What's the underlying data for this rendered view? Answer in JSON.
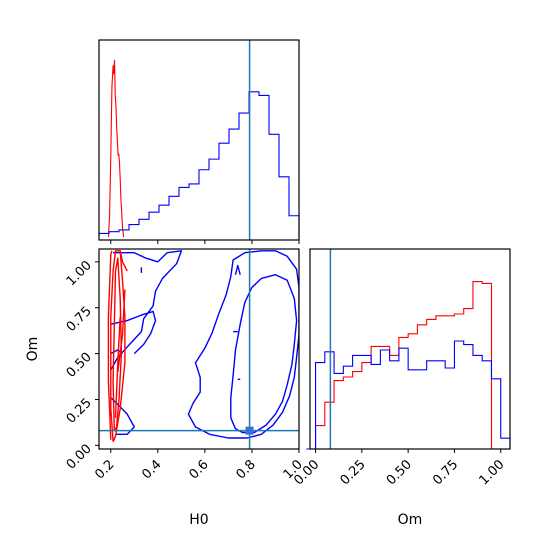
{
  "chart_data": [
    {
      "type": "histogram",
      "panel": "H0 marginal",
      "x_range": [
        0.15,
        1.0
      ],
      "truth_line": 0.79,
      "series": [
        {
          "color": "#ff0000",
          "step": false,
          "x": [
            0.19,
            0.195,
            0.2,
            0.205,
            0.21,
            0.213,
            0.216,
            0.219,
            0.222,
            0.225,
            0.228,
            0.231,
            0.234,
            0.237,
            0.24,
            0.243,
            0.246,
            0.25,
            0.255
          ],
          "values": [
            0.0,
            0.12,
            0.45,
            0.85,
            0.97,
            0.92,
            1.0,
            0.8,
            0.74,
            0.62,
            0.55,
            0.46,
            0.47,
            0.42,
            0.33,
            0.22,
            0.15,
            0.05,
            0.0
          ]
        },
        {
          "color": "#0000ff",
          "step": true,
          "bin_edges": [
            0.15,
            0.1925,
            0.235,
            0.2775,
            0.32,
            0.3625,
            0.405,
            0.4475,
            0.49,
            0.5325,
            0.575,
            0.6175,
            0.66,
            0.7025,
            0.745,
            0.7875,
            0.83,
            0.8725,
            0.915,
            0.9575,
            1.0
          ],
          "values": [
            0.02,
            0.03,
            0.04,
            0.07,
            0.1,
            0.14,
            0.18,
            0.23,
            0.28,
            0.3,
            0.38,
            0.44,
            0.53,
            0.61,
            0.7,
            0.82,
            0.8,
            0.58,
            0.34,
            0.12
          ]
        }
      ],
      "ylim": [
        0,
        1.0
      ]
    },
    {
      "type": "contour",
      "panel": "H0 vs Om joint",
      "xlabel": "H0",
      "ylabel": "Om",
      "xlim": [
        0.15,
        1.0
      ],
      "ylim": [
        -0.02,
        1.07
      ],
      "x_ticks": [
        "0.2",
        "0.4",
        "0.6",
        "0.8",
        "1.0"
      ],
      "x_tick_values": [
        0.2,
        0.4,
        0.6,
        0.8,
        1.0
      ],
      "y_ticks": [
        "0.00",
        "0.25",
        "0.50",
        "0.75",
        "1.00"
      ],
      "y_tick_values": [
        0.0,
        0.25,
        0.5,
        0.75,
        1.0
      ],
      "truth_point": [
        0.79,
        0.08
      ],
      "series": [
        {
          "color": "#0000ff",
          "contours": [
            [
              [
                0.73,
                0.09
              ],
              [
                0.71,
                0.15
              ],
              [
                0.71,
                0.26
              ],
              [
                0.72,
                0.38
              ],
              [
                0.73,
                0.52
              ],
              [
                0.75,
                0.66
              ],
              [
                0.77,
                0.78
              ],
              [
                0.8,
                0.86
              ],
              [
                0.84,
                0.91
              ],
              [
                0.9,
                0.93
              ],
              [
                0.95,
                0.9
              ],
              [
                0.98,
                0.8
              ],
              [
                0.99,
                0.68
              ],
              [
                0.98,
                0.55
              ],
              [
                0.97,
                0.44
              ],
              [
                0.95,
                0.33
              ],
              [
                0.93,
                0.24
              ],
              [
                0.9,
                0.17
              ],
              [
                0.86,
                0.11
              ],
              [
                0.81,
                0.07
              ],
              [
                0.76,
                0.07
              ],
              [
                0.73,
                0.09
              ]
            ],
            [
              [
                0.62,
                0.06
              ],
              [
                0.56,
                0.1
              ],
              [
                0.53,
                0.17
              ],
              [
                0.55,
                0.23
              ],
              [
                0.58,
                0.29
              ],
              [
                0.58,
                0.37
              ],
              [
                0.56,
                0.45
              ],
              [
                0.6,
                0.53
              ],
              [
                0.63,
                0.61
              ],
              [
                0.66,
                0.72
              ],
              [
                0.69,
                0.82
              ],
              [
                0.71,
                0.92
              ],
              [
                0.72,
                1.01
              ],
              [
                0.77,
                1.05
              ],
              [
                0.84,
                1.06
              ],
              [
                0.9,
                1.06
              ],
              [
                0.95,
                1.03
              ],
              [
                0.99,
                0.96
              ],
              [
                1.0,
                0.86
              ],
              [
                1.0,
                0.73
              ],
              [
                1.0,
                0.6
              ],
              [
                0.99,
                0.48
              ],
              [
                0.98,
                0.37
              ],
              [
                0.96,
                0.27
              ],
              [
                0.93,
                0.18
              ],
              [
                0.89,
                0.11
              ],
              [
                0.84,
                0.06
              ],
              [
                0.78,
                0.04
              ],
              [
                0.7,
                0.04
              ],
              [
                0.62,
                0.06
              ]
            ],
            [
              [
                0.21,
                1.05
              ],
              [
                0.3,
                1.05
              ],
              [
                0.35,
                1.02
              ],
              [
                0.4,
                1.0
              ],
              [
                0.44,
                1.05
              ],
              [
                0.5,
                1.06
              ],
              [
                0.48,
                0.99
              ],
              [
                0.42,
                0.91
              ],
              [
                0.39,
                0.84
              ],
              [
                0.38,
                0.76
              ],
              [
                0.34,
                0.69
              ],
              [
                0.33,
                0.62
              ],
              [
                0.28,
                0.55
              ],
              [
                0.23,
                0.48
              ],
              [
                0.2,
                0.41
              ]
            ],
            [
              [
                0.2,
                0.66
              ],
              [
                0.27,
                0.68
              ],
              [
                0.33,
                0.71
              ],
              [
                0.38,
                0.73
              ],
              [
                0.39,
                0.68
              ],
              [
                0.37,
                0.61
              ],
              [
                0.34,
                0.55
              ],
              [
                0.3,
                0.5
              ]
            ],
            [
              [
                0.2,
                0.26
              ],
              [
                0.24,
                0.21
              ],
              [
                0.27,
                0.17
              ],
              [
                0.3,
                0.1
              ],
              [
                0.27,
                0.06
              ],
              [
                0.22,
                0.06
              ]
            ],
            [
              [
                0.73,
                0.93
              ],
              [
                0.74,
                0.98
              ],
              [
                0.75,
                0.93
              ]
            ],
            [
              [
                0.72,
                0.62
              ],
              [
                0.74,
                0.62
              ]
            ],
            [
              [
                0.74,
                0.36
              ],
              [
                0.75,
                0.36
              ]
            ],
            [
              [
                0.33,
                0.97
              ],
              [
                0.33,
                0.94
              ]
            ],
            [
              [
                0.2,
                0.5
              ],
              [
                0.23,
                0.52
              ],
              [
                0.25,
                0.5
              ]
            ]
          ]
        },
        {
          "color": "#ff0000",
          "contours": [
            [
              [
                0.21,
                0.02
              ],
              [
                0.2,
                0.2
              ],
              [
                0.2,
                0.45
              ],
              [
                0.2,
                0.7
              ],
              [
                0.21,
                0.95
              ],
              [
                0.22,
                1.06
              ],
              [
                0.24,
                1.06
              ],
              [
                0.25,
                0.9
              ],
              [
                0.26,
                0.7
              ],
              [
                0.26,
                0.45
              ],
              [
                0.24,
                0.2
              ],
              [
                0.22,
                0.05
              ],
              [
                0.21,
                0.02
              ]
            ],
            [
              [
                0.215,
                0.08
              ],
              [
                0.21,
                0.35
              ],
              [
                0.215,
                0.65
              ],
              [
                0.22,
                0.95
              ],
              [
                0.23,
                1.02
              ],
              [
                0.24,
                0.8
              ],
              [
                0.245,
                0.5
              ],
              [
                0.235,
                0.25
              ],
              [
                0.225,
                0.1
              ],
              [
                0.215,
                0.08
              ]
            ],
            [
              [
                0.2,
                0.03
              ],
              [
                0.19,
                0.35
              ],
              [
                0.19,
                0.7
              ],
              [
                0.2,
                1.04
              ],
              [
                0.205,
                1.06
              ]
            ],
            [
              [
                0.24,
                1.06
              ],
              [
                0.25,
                1.0
              ],
              [
                0.27,
                0.95
              ]
            ],
            [
              [
                0.23,
                0.4
              ],
              [
                0.25,
                0.6
              ],
              [
                0.26,
                0.85
              ]
            ],
            [
              [
                0.22,
                0.15
              ],
              [
                0.23,
                0.45
              ],
              [
                0.24,
                0.7
              ]
            ]
          ]
        }
      ]
    },
    {
      "type": "histogram",
      "panel": "Om marginal",
      "xlabel": "Om",
      "x_range": [
        -0.03,
        1.05
      ],
      "x_ticks": [
        "0.00",
        "0.25",
        "0.50",
        "0.75",
        "1.00"
      ],
      "x_tick_values": [
        0.0,
        0.25,
        0.5,
        0.75,
        1.0
      ],
      "truth_line": 0.08,
      "series": [
        {
          "color": "#ff0000",
          "step": true,
          "bin_edges": [
            0.0,
            0.05,
            0.1,
            0.15,
            0.2,
            0.25,
            0.3,
            0.35,
            0.4,
            0.45,
            0.5,
            0.55,
            0.6,
            0.65,
            0.7,
            0.75,
            0.8,
            0.85,
            0.9,
            0.95,
            1.0
          ],
          "values": [
            0.13,
            0.26,
            0.38,
            0.4,
            0.43,
            0.48,
            0.57,
            0.57,
            0.52,
            0.62,
            0.64,
            0.69,
            0.72,
            0.74,
            0.74,
            0.75,
            0.78,
            0.93,
            0.92,
            0.0
          ]
        },
        {
          "color": "#0000ff",
          "step": true,
          "bin_edges": [
            -0.05,
            0.0,
            0.05,
            0.1,
            0.15,
            0.2,
            0.25,
            0.3,
            0.35,
            0.4,
            0.45,
            0.5,
            0.55,
            0.6,
            0.65,
            0.7,
            0.75,
            0.8,
            0.85,
            0.9,
            0.95,
            1.0,
            1.05
          ],
          "values": [
            0.0,
            0.48,
            0.54,
            0.42,
            0.46,
            0.52,
            0.52,
            0.47,
            0.55,
            0.49,
            0.56,
            0.44,
            0.44,
            0.49,
            0.49,
            0.45,
            0.6,
            0.58,
            0.52,
            0.49,
            0.39,
            0.06
          ]
        }
      ],
      "ylim": [
        0,
        1.0
      ]
    }
  ]
}
